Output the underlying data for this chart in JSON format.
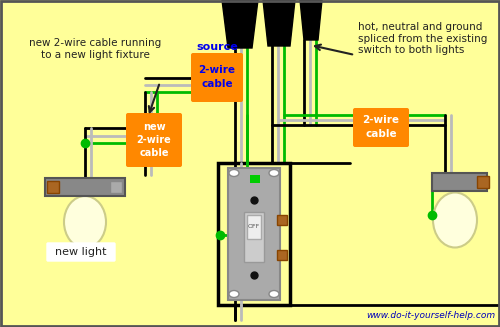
{
  "bg_color": "#FFFF99",
  "annotations": {
    "top_left": "new 2-wire cable running\nto a new light fixture",
    "top_right": "hot, neutral and ground\nspliced from the existing\nswitch to both lights",
    "source_label": "2-wire\ncable",
    "source_word": "source",
    "new_cable_label": "new\n2-wire\ncable",
    "right_cable_label": "2-wire\ncable",
    "new_light_label": "new light",
    "website": "www.do-it-yourself-help.com"
  },
  "colors": {
    "black_wire": "#000000",
    "white_wire": "#BBBBBB",
    "green_wire": "#00BB00",
    "orange_box": "#FF8800",
    "blue_text": "#0000EE",
    "dark_text": "#222222",
    "switch_gray": "#AAAAAA",
    "light_gray": "#999999",
    "bulb_color": "#FFFFCC",
    "copper": "#AA6622"
  }
}
